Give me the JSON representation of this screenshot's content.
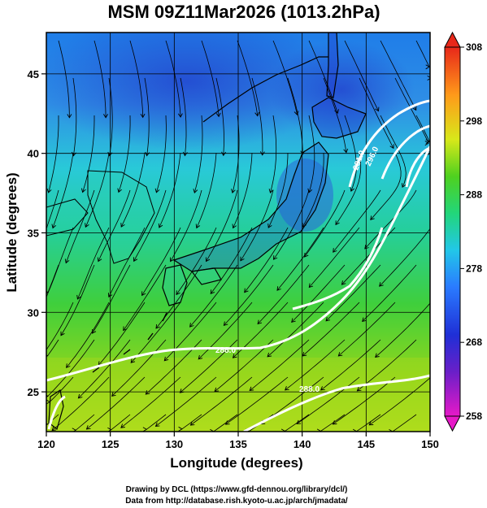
{
  "title": "MSM 09Z11Mar2026 (1013.2hPa)",
  "xlabel": "Longitude (degrees)",
  "ylabel": "Latitude  (degrees)",
  "credits": {
    "line1": "Drawing by DCL (https://www.gfd-dennou.org/library/dcl/)",
    "line2": "Data from http://database.rish.kyoto-u.ac.jp/arch/jmadata/"
  },
  "map": {
    "lon_range": [
      120,
      150
    ],
    "lat_range": [
      22.5,
      47.6
    ],
    "lon_ticks": [
      "120",
      "125",
      "130",
      "135",
      "140",
      "145",
      "150"
    ],
    "lat_ticks": [
      "25",
      "30",
      "35",
      "40",
      "45"
    ],
    "grid": true
  },
  "colorbar": {
    "range": [
      258,
      308
    ],
    "ticks": [
      "258",
      "268",
      "278",
      "288",
      "298",
      "308"
    ],
    "palette": [
      "#e619c8",
      "#1f1fd6",
      "#2a6bff",
      "#22c7e8",
      "#22d67a",
      "#63d11f",
      "#d8e81a",
      "#ff9a1a",
      "#e8281a"
    ]
  },
  "contour_labels": [
    "288.0",
    "288.0",
    "296.0",
    "281.0",
    "279.0",
    "276.0"
  ],
  "colors": {
    "contour": "#ffffff",
    "streamline": "#000000",
    "coast": "#000000"
  }
}
